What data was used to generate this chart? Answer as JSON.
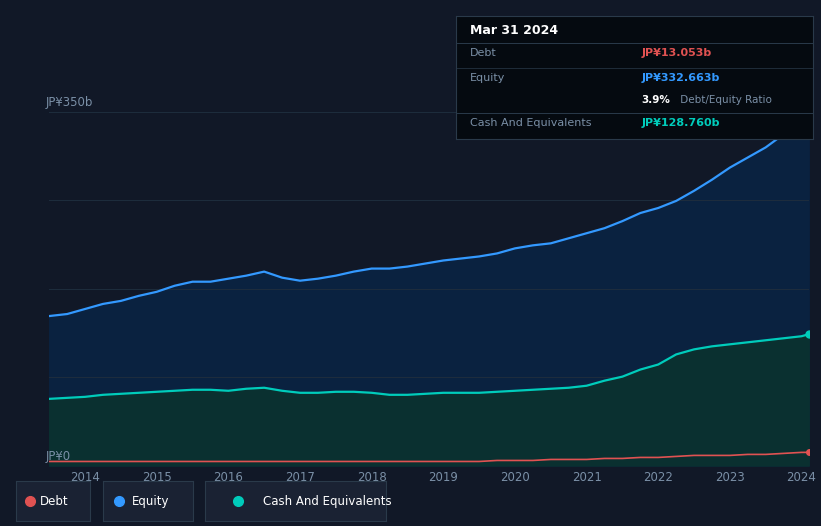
{
  "background_color": "#111827",
  "plot_bg_color": "#111827",
  "tooltip": {
    "date": "Mar 31 2024",
    "debt_label": "Debt",
    "debt_value": "JP¥13.053b",
    "equity_label": "Equity",
    "equity_value": "JP¥332.663b",
    "ratio_bold": "3.9%",
    "ratio_rest": " Debt/Equity Ratio",
    "cash_label": "Cash And Equivalents",
    "cash_value": "JP¥128.760b"
  },
  "years": [
    2013.5,
    2013.75,
    2014.0,
    2014.25,
    2014.5,
    2014.75,
    2015.0,
    2015.25,
    2015.5,
    2015.75,
    2016.0,
    2016.25,
    2016.5,
    2016.75,
    2017.0,
    2017.25,
    2017.5,
    2017.75,
    2018.0,
    2018.25,
    2018.5,
    2018.75,
    2019.0,
    2019.25,
    2019.5,
    2019.75,
    2020.0,
    2020.25,
    2020.5,
    2020.75,
    2021.0,
    2021.25,
    2021.5,
    2021.75,
    2022.0,
    2022.25,
    2022.5,
    2022.75,
    2023.0,
    2023.25,
    2023.5,
    2023.75,
    2024.0,
    2024.1
  ],
  "equity": [
    148,
    150,
    155,
    160,
    163,
    168,
    172,
    178,
    182,
    182,
    185,
    188,
    192,
    186,
    183,
    185,
    188,
    192,
    195,
    195,
    197,
    200,
    203,
    205,
    207,
    210,
    215,
    218,
    220,
    225,
    230,
    235,
    242,
    250,
    255,
    262,
    272,
    283,
    295,
    305,
    315,
    328,
    332,
    335
  ],
  "cash": [
    66,
    67,
    68,
    70,
    71,
    72,
    73,
    74,
    75,
    75,
    74,
    76,
    77,
    74,
    72,
    72,
    73,
    73,
    72,
    70,
    70,
    71,
    72,
    72,
    72,
    73,
    74,
    75,
    76,
    77,
    79,
    84,
    88,
    95,
    100,
    110,
    115,
    118,
    120,
    122,
    124,
    126,
    128,
    130
  ],
  "debt": [
    4,
    4,
    4,
    4,
    4,
    4,
    4,
    4,
    4,
    4,
    4,
    4,
    4,
    4,
    4,
    4,
    4,
    4,
    4,
    4,
    4,
    4,
    4,
    4,
    4,
    5,
    5,
    5,
    6,
    6,
    6,
    7,
    7,
    8,
    8,
    9,
    10,
    10,
    10,
    11,
    11,
    12,
    13,
    13
  ],
  "ylim": [
    0,
    375
  ],
  "ytick_label_350": "JP¥350b",
  "ytick_label_0": "JP¥0",
  "xtick_labels": [
    "2014",
    "2015",
    "2016",
    "2017",
    "2018",
    "2019",
    "2020",
    "2021",
    "2022",
    "2023",
    "2024"
  ],
  "xtick_values": [
    2014,
    2015,
    2016,
    2017,
    2018,
    2019,
    2020,
    2021,
    2022,
    2023,
    2024
  ],
  "debt_color": "#e05252",
  "equity_color": "#3399ff",
  "cash_color": "#00ccbb",
  "equity_fill": "#0a2240",
  "cash_fill": "#0a3030",
  "grid_color": "#1e2d3d",
  "text_color": "#7a8fa6",
  "tooltip_bg": "#050a10",
  "tooltip_border": "#2a3a4a",
  "debt_label": "Debt",
  "equity_label": "Equity",
  "cash_label": "Cash And Equivalents",
  "legend_bg": "#1a2233",
  "legend_border": "#2a3a4a"
}
